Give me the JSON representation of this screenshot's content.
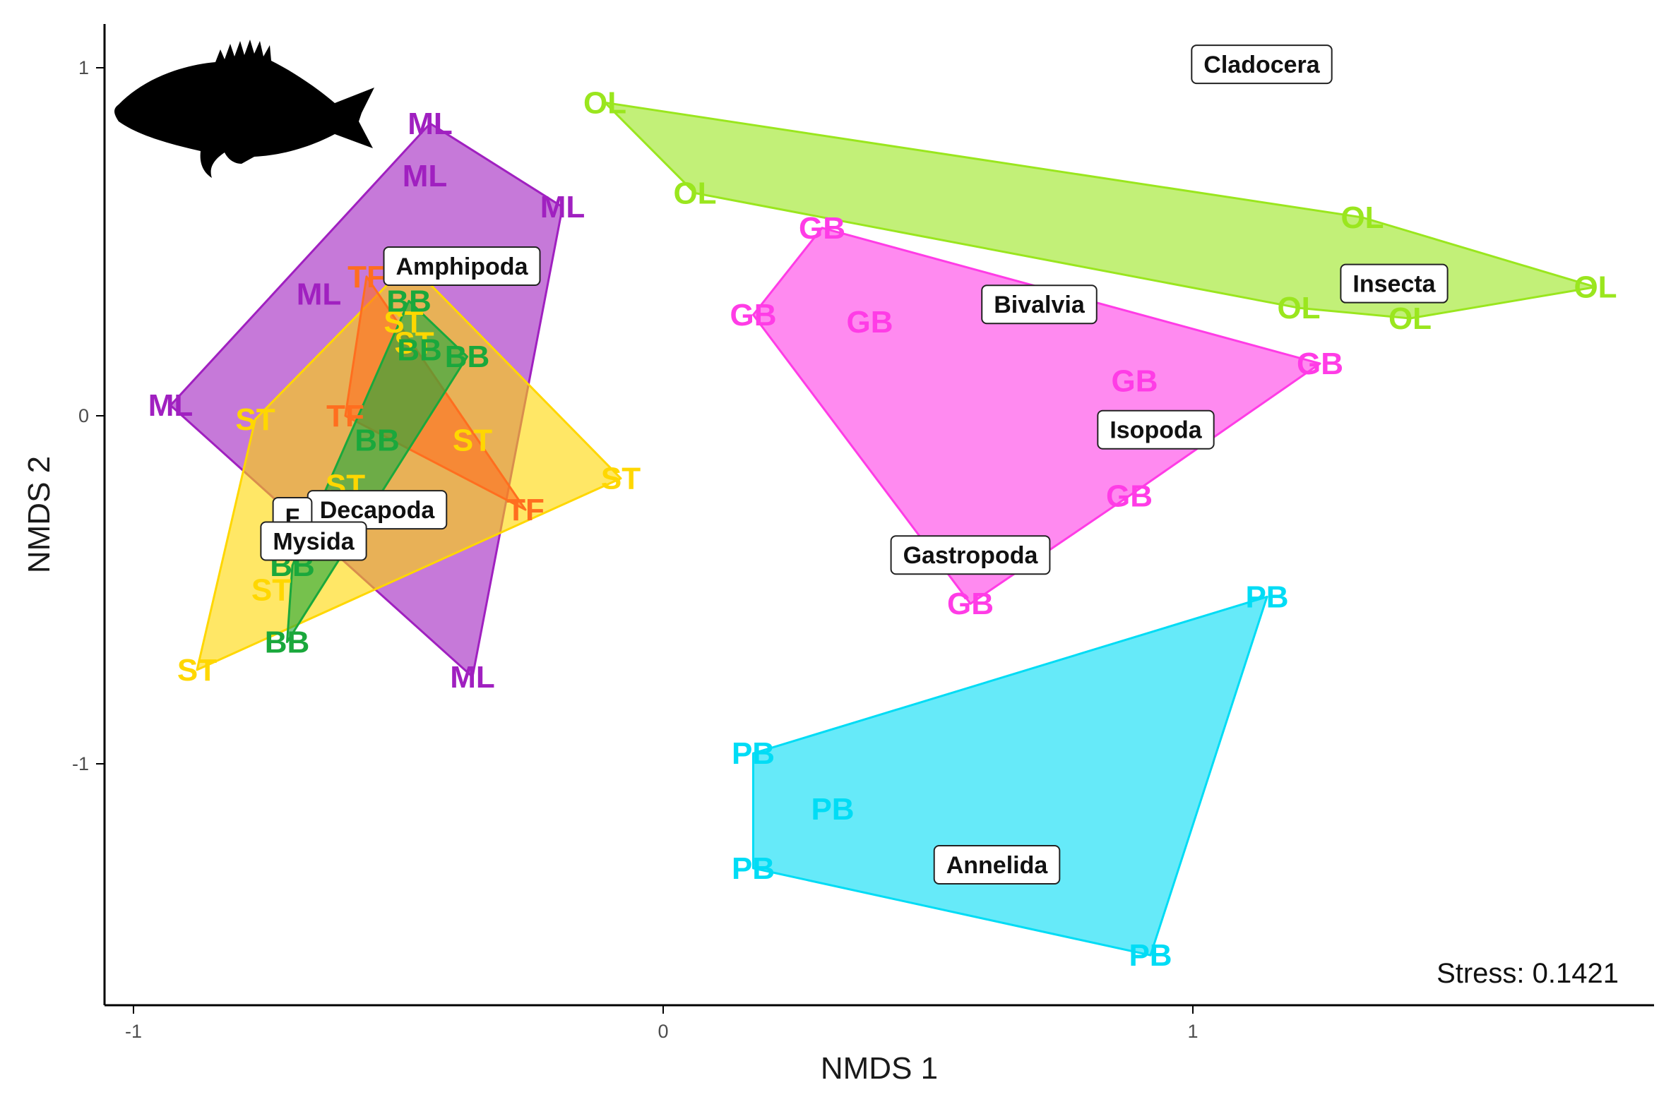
{
  "chart_data": {
    "type": "scatter",
    "subtype": "nmds-convex-hulls",
    "xlabel": "NMDS 1",
    "ylabel": "NMDS 2",
    "xlim": [
      -1.05,
      1.85
    ],
    "ylim": [
      -1.68,
      1.13
    ],
    "x_ticks": [
      -1,
      0,
      1
    ],
    "y_ticks": [
      -1,
      0,
      1
    ],
    "grid": false,
    "stress_label": "Stress: 0.1421",
    "series": [
      {
        "name": "ML",
        "color": "#a020c0",
        "points": [
          [
            -0.44,
            0.84
          ],
          [
            -0.45,
            0.69
          ],
          [
            -0.19,
            0.6
          ],
          [
            -0.65,
            0.35
          ],
          [
            -0.93,
            0.03
          ],
          [
            -0.36,
            -0.75
          ]
        ]
      },
      {
        "name": "ST",
        "color": "#ffd700",
        "points": [
          [
            -0.48,
            0.44
          ],
          [
            -0.49,
            0.27
          ],
          [
            -0.47,
            0.21
          ],
          [
            -0.77,
            -0.01
          ],
          [
            -0.36,
            -0.07
          ],
          [
            -0.08,
            -0.18
          ],
          [
            -0.6,
            -0.2
          ],
          [
            -0.74,
            -0.5
          ],
          [
            -0.88,
            -0.73
          ]
        ]
      },
      {
        "name": "TF",
        "color": "#ff6e1f",
        "points": [
          [
            -0.56,
            0.4
          ],
          [
            -0.6,
            0.0
          ],
          [
            -0.26,
            -0.27
          ]
        ]
      },
      {
        "name": "BB",
        "color": "#1aa83c",
        "points": [
          [
            -0.48,
            0.33
          ],
          [
            -0.46,
            0.19
          ],
          [
            -0.37,
            0.17
          ],
          [
            -0.54,
            -0.07
          ],
          [
            -0.7,
            -0.43
          ],
          [
            -0.71,
            -0.65
          ]
        ]
      },
      {
        "name": "OL",
        "color": "#9ae61e",
        "points": [
          [
            -0.11,
            0.9
          ],
          [
            0.06,
            0.64
          ],
          [
            1.32,
            0.57
          ],
          [
            1.76,
            0.37
          ],
          [
            1.2,
            0.31
          ],
          [
            1.41,
            0.28
          ]
        ]
      },
      {
        "name": "GB",
        "color": "#ff3ce6",
        "points": [
          [
            0.3,
            0.54
          ],
          [
            0.17,
            0.29
          ],
          [
            0.39,
            0.27
          ],
          [
            1.24,
            0.15
          ],
          [
            0.89,
            0.1
          ],
          [
            0.88,
            -0.23
          ],
          [
            0.58,
            -0.54
          ]
        ]
      },
      {
        "name": "PB",
        "color": "#00dcf5",
        "points": [
          [
            1.14,
            -0.52
          ],
          [
            0.17,
            -0.97
          ],
          [
            0.32,
            -1.13
          ],
          [
            0.17,
            -1.3
          ],
          [
            0.92,
            -1.55
          ]
        ]
      }
    ],
    "taxa": [
      {
        "name": "Cladocera",
        "x": 1.13,
        "y": 1.01
      },
      {
        "name": "Amphipoda",
        "x": -0.38,
        "y": 0.43
      },
      {
        "name": "Insecta",
        "x": 1.38,
        "y": 0.38
      },
      {
        "name": "Bivalvia",
        "x": 0.71,
        "y": 0.32
      },
      {
        "name": "Isopoda",
        "x": 0.93,
        "y": -0.04
      },
      {
        "name": "Decapoda",
        "x": -0.54,
        "y": -0.27
      },
      {
        "name": "F",
        "x": -0.7,
        "y": -0.29
      },
      {
        "name": "Mysida",
        "x": -0.66,
        "y": -0.36
      },
      {
        "name": "Gastropoda",
        "x": 0.58,
        "y": -0.4
      },
      {
        "name": "Annelida",
        "x": 0.63,
        "y": -1.29
      }
    ]
  }
}
